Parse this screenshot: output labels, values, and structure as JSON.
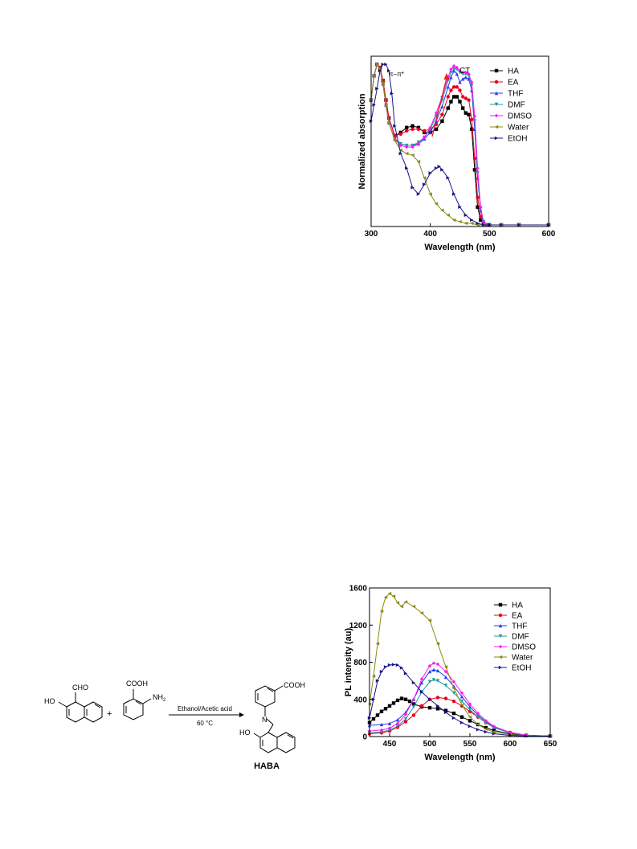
{
  "chart_data": [
    {
      "type": "line",
      "xlabel": "Wavelength (nm)",
      "ylabel": "Normalized absorption",
      "xlim": [
        300,
        600
      ],
      "ylim": [
        0,
        1.05
      ],
      "xticks": [
        300,
        400,
        500,
        600
      ],
      "annotations": [
        "π−π*",
        "CT"
      ],
      "legend_position": "top-right",
      "series": [
        {
          "name": "HA",
          "color": "#000000",
          "marker": "square",
          "x": [
            300,
            305,
            310,
            315,
            320,
            325,
            330,
            340,
            350,
            360,
            370,
            380,
            390,
            400,
            410,
            420,
            430,
            435,
            440,
            445,
            450,
            455,
            460,
            465,
            470,
            475,
            480,
            485,
            490,
            495,
            500,
            520,
            550,
            600
          ],
          "y": [
            0.78,
            0.93,
            1.0,
            0.98,
            0.9,
            0.78,
            0.67,
            0.56,
            0.58,
            0.61,
            0.62,
            0.61,
            0.58,
            0.58,
            0.6,
            0.65,
            0.73,
            0.77,
            0.8,
            0.8,
            0.77,
            0.73,
            0.7,
            0.69,
            0.6,
            0.35,
            0.12,
            0.04,
            0.02,
            0.01,
            0.01,
            0.01,
            0.01,
            0.01
          ]
        },
        {
          "name": "EA",
          "color": "#e8001c",
          "marker": "circle",
          "x": [
            300,
            305,
            310,
            315,
            320,
            325,
            330,
            340,
            350,
            360,
            370,
            380,
            390,
            400,
            410,
            420,
            430,
            435,
            440,
            445,
            450,
            455,
            460,
            465,
            470,
            475,
            480,
            485,
            490,
            495,
            500,
            520,
            550,
            600
          ],
          "y": [
            0.78,
            0.93,
            1.0,
            0.98,
            0.9,
            0.78,
            0.67,
            0.56,
            0.57,
            0.59,
            0.6,
            0.6,
            0.59,
            0.6,
            0.63,
            0.69,
            0.8,
            0.84,
            0.86,
            0.86,
            0.84,
            0.8,
            0.79,
            0.78,
            0.66,
            0.42,
            0.18,
            0.06,
            0.02,
            0.01,
            0.01,
            0.01,
            0.01,
            0.01
          ]
        },
        {
          "name": "THF",
          "color": "#2a3cf0",
          "marker": "triangle-up",
          "x": [
            300,
            305,
            310,
            315,
            320,
            325,
            330,
            340,
            350,
            360,
            370,
            380,
            390,
            400,
            410,
            420,
            430,
            435,
            440,
            445,
            450,
            455,
            460,
            465,
            470,
            475,
            480,
            485,
            490,
            495,
            500,
            520,
            550,
            600
          ],
          "y": [
            0.78,
            0.93,
            1.0,
            0.97,
            0.88,
            0.75,
            0.64,
            0.54,
            0.51,
            0.5,
            0.5,
            0.51,
            0.54,
            0.58,
            0.65,
            0.74,
            0.86,
            0.92,
            0.96,
            0.94,
            0.89,
            0.91,
            0.92,
            0.91,
            0.84,
            0.6,
            0.3,
            0.1,
            0.03,
            0.01,
            0.01,
            0.01,
            0.01,
            0.01
          ]
        },
        {
          "name": "DMF",
          "color": "#1f9a9a",
          "marker": "triangle-down",
          "x": [
            300,
            305,
            310,
            315,
            320,
            325,
            330,
            340,
            350,
            360,
            370,
            380,
            390,
            400,
            410,
            420,
            430,
            435,
            440,
            445,
            450,
            455,
            460,
            465,
            470,
            475,
            480,
            485,
            490,
            495,
            500,
            520,
            550,
            600
          ],
          "y": [
            0.78,
            0.93,
            1.0,
            0.97,
            0.88,
            0.75,
            0.64,
            0.54,
            0.51,
            0.5,
            0.5,
            0.52,
            0.55,
            0.6,
            0.68,
            0.78,
            0.9,
            0.95,
            0.97,
            0.97,
            0.95,
            0.94,
            0.94,
            0.93,
            0.87,
            0.65,
            0.33,
            0.11,
            0.03,
            0.01,
            0.01,
            0.01,
            0.01,
            0.01
          ]
        },
        {
          "name": "DMSO",
          "color": "#ff18f0",
          "marker": "diamond",
          "x": [
            300,
            305,
            310,
            315,
            320,
            325,
            330,
            340,
            350,
            360,
            370,
            380,
            390,
            400,
            410,
            420,
            430,
            435,
            440,
            445,
            450,
            455,
            460,
            465,
            470,
            475,
            480,
            485,
            490,
            495,
            500,
            520,
            550,
            600
          ],
          "y": [
            0.78,
            0.93,
            1.0,
            0.97,
            0.88,
            0.75,
            0.64,
            0.54,
            0.5,
            0.49,
            0.49,
            0.51,
            0.55,
            0.61,
            0.7,
            0.8,
            0.92,
            0.97,
            0.99,
            0.98,
            0.96,
            0.95,
            0.95,
            0.94,
            0.89,
            0.68,
            0.36,
            0.12,
            0.03,
            0.01,
            0.01,
            0.01,
            0.01,
            0.01
          ]
        },
        {
          "name": "Water",
          "color": "#8a8a10",
          "marker": "triangle-left",
          "x": [
            300,
            305,
            310,
            315,
            320,
            325,
            330,
            340,
            350,
            360,
            370,
            380,
            390,
            400,
            410,
            420,
            430,
            440,
            450,
            460,
            470,
            480,
            490,
            500,
            520,
            550,
            600
          ],
          "y": [
            0.78,
            0.93,
            1.0,
            0.97,
            0.88,
            0.75,
            0.64,
            0.53,
            0.47,
            0.45,
            0.44,
            0.4,
            0.3,
            0.2,
            0.14,
            0.1,
            0.07,
            0.04,
            0.03,
            0.02,
            0.02,
            0.01,
            0.01,
            0.01,
            0.01,
            0.01,
            0.01
          ]
        },
        {
          "name": "EtOH",
          "color": "#16168a",
          "marker": "triangle-right",
          "x": [
            300,
            305,
            310,
            315,
            320,
            325,
            330,
            335,
            340,
            350,
            360,
            370,
            380,
            390,
            400,
            410,
            415,
            420,
            430,
            440,
            450,
            460,
            470,
            480,
            490,
            500,
            520,
            550,
            600
          ],
          "y": [
            0.65,
            0.75,
            0.85,
            0.96,
            1.0,
            1.0,
            0.96,
            0.82,
            0.62,
            0.45,
            0.36,
            0.24,
            0.2,
            0.26,
            0.33,
            0.36,
            0.37,
            0.35,
            0.3,
            0.2,
            0.12,
            0.07,
            0.04,
            0.02,
            0.01,
            0.01,
            0.01,
            0.01,
            0.01
          ]
        }
      ]
    },
    {
      "type": "line",
      "xlabel": "Wavelength (nm)",
      "ylabel": "PL intensity (au)",
      "xlim": [
        425,
        650
      ],
      "ylim": [
        0,
        1600
      ],
      "xticks": [
        450,
        500,
        550,
        600,
        650
      ],
      "yticks": [
        0,
        400,
        800,
        1200,
        1600
      ],
      "legend_position": "top-right",
      "series": [
        {
          "name": "HA",
          "color": "#000000",
          "marker": "square",
          "x": [
            425,
            430,
            435,
            440,
            445,
            450,
            455,
            460,
            465,
            470,
            475,
            480,
            490,
            500,
            510,
            520,
            530,
            540,
            550,
            560,
            570,
            580,
            600,
            620,
            650
          ],
          "y": [
            150,
            190,
            230,
            270,
            300,
            330,
            360,
            390,
            410,
            400,
            380,
            350,
            320,
            310,
            300,
            280,
            250,
            210,
            170,
            130,
            95,
            65,
            30,
            12,
            5
          ]
        },
        {
          "name": "EA",
          "color": "#e8001c",
          "marker": "circle",
          "x": [
            425,
            440,
            450,
            460,
            470,
            480,
            490,
            500,
            510,
            520,
            530,
            540,
            550,
            560,
            570,
            580,
            600,
            620,
            650
          ],
          "y": [
            30,
            40,
            60,
            100,
            160,
            230,
            330,
            400,
            420,
            410,
            380,
            330,
            270,
            210,
            150,
            100,
            45,
            15,
            5
          ]
        },
        {
          "name": "THF",
          "color": "#2a3cf0",
          "marker": "triangle-up",
          "x": [
            425,
            440,
            450,
            460,
            470,
            480,
            490,
            500,
            505,
            510,
            520,
            530,
            540,
            550,
            560,
            570,
            580,
            600,
            620,
            650
          ],
          "y": [
            120,
            130,
            140,
            180,
            260,
            400,
            580,
            700,
            720,
            710,
            640,
            540,
            430,
            320,
            230,
            160,
            100,
            40,
            12,
            5
          ]
        },
        {
          "name": "DMF",
          "color": "#1f9a9a",
          "marker": "triangle-down",
          "x": [
            425,
            440,
            450,
            460,
            470,
            480,
            490,
            500,
            505,
            510,
            520,
            530,
            540,
            550,
            560,
            570,
            580,
            600,
            620,
            650
          ],
          "y": [
            40,
            50,
            70,
            110,
            190,
            320,
            480,
            590,
            610,
            600,
            550,
            470,
            380,
            290,
            210,
            150,
            95,
            40,
            12,
            5
          ]
        },
        {
          "name": "DMSO",
          "color": "#ff18f0",
          "marker": "diamond",
          "x": [
            425,
            440,
            450,
            460,
            470,
            480,
            490,
            500,
            505,
            510,
            520,
            530,
            540,
            550,
            560,
            570,
            580,
            600,
            620,
            650
          ],
          "y": [
            60,
            70,
            90,
            140,
            240,
            400,
            620,
            760,
            790,
            780,
            700,
            590,
            470,
            350,
            250,
            170,
            110,
            45,
            14,
            5
          ]
        },
        {
          "name": "Water",
          "color": "#8a8a10",
          "marker": "triangle-left",
          "x": [
            425,
            430,
            435,
            440,
            445,
            450,
            455,
            460,
            465,
            470,
            480,
            490,
            500,
            510,
            520,
            530,
            540,
            550,
            560,
            570,
            580,
            600,
            620,
            650
          ],
          "y": [
            350,
            650,
            1000,
            1350,
            1500,
            1540,
            1510,
            1440,
            1400,
            1450,
            1400,
            1330,
            1250,
            1000,
            750,
            520,
            340,
            210,
            130,
            80,
            50,
            20,
            8,
            5
          ]
        },
        {
          "name": "EtOH",
          "color": "#16168a",
          "marker": "triangle-right",
          "x": [
            425,
            430,
            435,
            440,
            445,
            450,
            455,
            460,
            465,
            470,
            480,
            490,
            500,
            510,
            520,
            530,
            540,
            550,
            560,
            570,
            580,
            600,
            620,
            650
          ],
          "y": [
            200,
            400,
            600,
            700,
            750,
            770,
            775,
            770,
            740,
            680,
            580,
            480,
            400,
            330,
            260,
            200,
            150,
            110,
            75,
            50,
            30,
            12,
            6,
            5
          ]
        }
      ]
    }
  ],
  "scheme": {
    "reagent1_cho": "CHO",
    "reagent1_ho": "HO",
    "plus": "+",
    "reagent2_cooh": "COOH",
    "reagent2_nh2": "NH",
    "reagent2_nh2_sub": "2",
    "arrow_top": "Ethanol/Acetic acid",
    "arrow_bottom": "60 °C",
    "product_cooh": "COOH",
    "product_n": "N",
    "product_ho": "HO",
    "product_name": "HABA"
  }
}
